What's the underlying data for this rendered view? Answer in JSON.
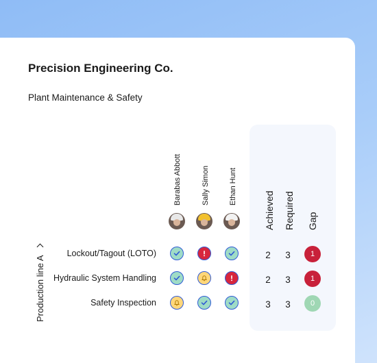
{
  "company": "Precision Engineering Co.",
  "subtitle": "Plant Maintenance & Safety",
  "group": {
    "label": "Production  line A",
    "icon": "chevron-right-icon"
  },
  "people": [
    {
      "name": "Barabas Abbott",
      "helmet_color": "#e8e8e8"
    },
    {
      "name": "Sally Simon",
      "helmet_color": "#f2c12e"
    },
    {
      "name": "Ethan Hunt",
      "helmet_color": "#f2f2f2"
    }
  ],
  "columns": {
    "achieved": "Achieved",
    "required": "Required",
    "gap": "Gap"
  },
  "skills": [
    {
      "name": "Lockout/Tagout (LOTO)",
      "statuses": [
        "ok",
        "alert",
        "ok"
      ],
      "achieved": "2",
      "required": "3",
      "gap": "1",
      "gap_state": "red"
    },
    {
      "name": "Hydraulic System Handling",
      "statuses": [
        "ok",
        "warn",
        "alert"
      ],
      "achieved": "2",
      "required": "3",
      "gap": "1",
      "gap_state": "red"
    },
    {
      "name": "Safety Inspection",
      "statuses": [
        "warn",
        "ok",
        "ok"
      ],
      "achieved": "3",
      "required": "3",
      "gap": "0",
      "gap_state": "green"
    }
  ],
  "status_icons": {
    "ok": "check-icon",
    "warn": "bell-icon",
    "alert": "exclamation-icon"
  },
  "colors": {
    "ok": "#9fdcc6",
    "warn": "#ffd77a",
    "alert": "#d7263d",
    "gap_red": "#c8213a",
    "gap_green": "#9fd7b4",
    "status_border": "#2f5bd6"
  }
}
